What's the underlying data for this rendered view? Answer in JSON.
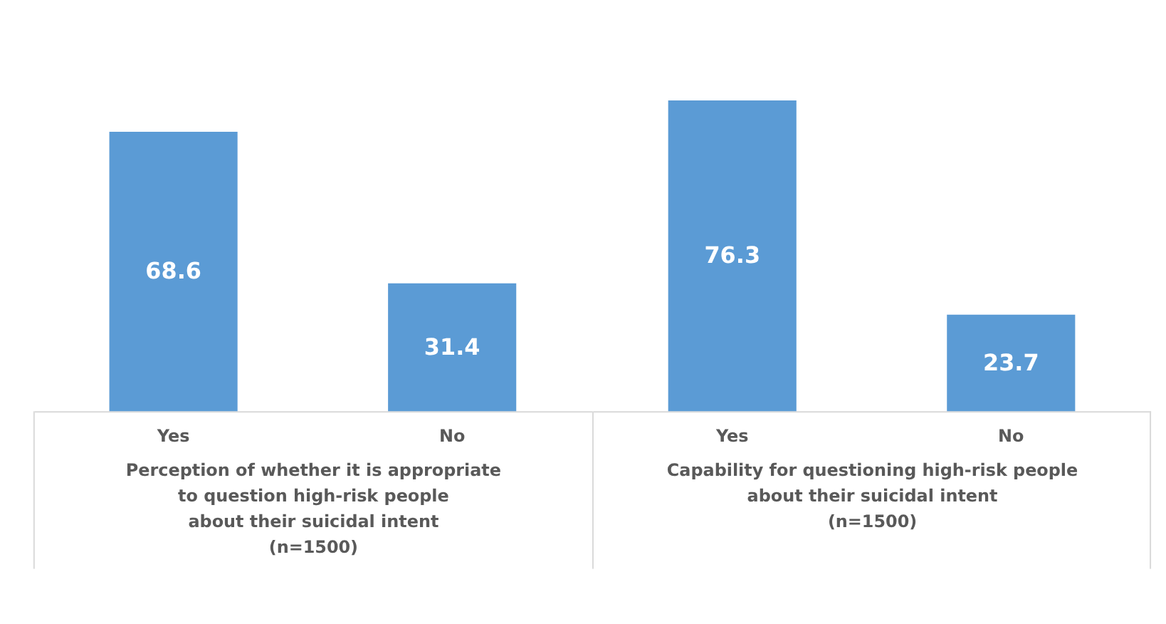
{
  "chart_data": [
    {
      "type": "bar",
      "categories": [
        "Yes",
        "No"
      ],
      "values": [
        68.6,
        31.4
      ],
      "color": "#5b9bd5",
      "data_labels": true,
      "xlabel": "Perception of whether it is appropriate\nto question high-risk people\nabout their suicidal intent\n(n=1500)"
    },
    {
      "type": "bar",
      "categories": [
        "Yes",
        "No"
      ],
      "values": [
        76.3,
        23.7
      ],
      "color": "#5b9bd5",
      "data_labels": true,
      "xlabel": "Capability for questioning high-risk people\nabout their suicidal intent\n(n=1500)"
    }
  ]
}
